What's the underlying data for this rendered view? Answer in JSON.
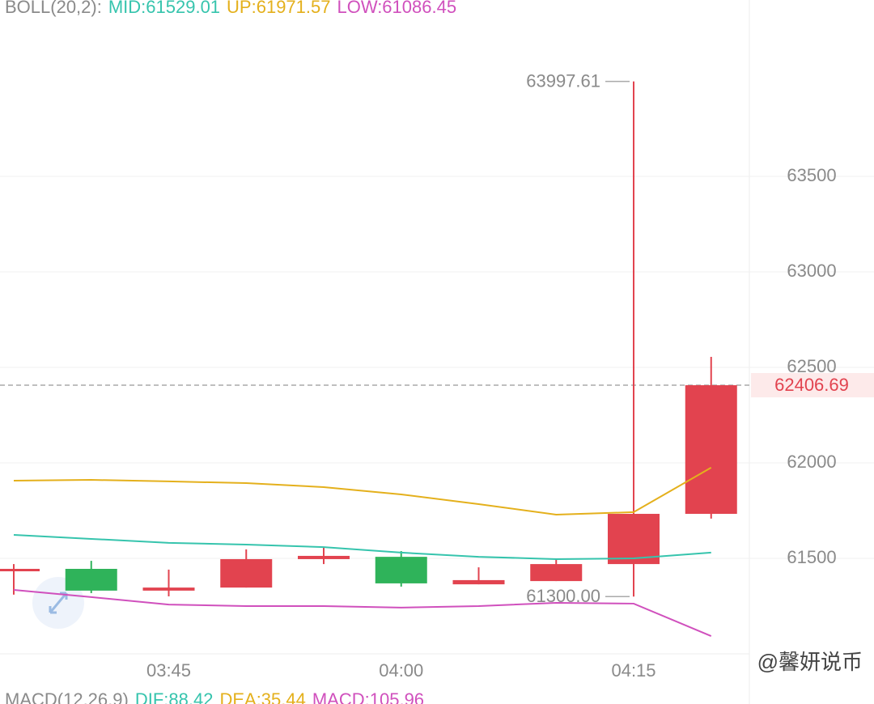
{
  "chart_data": {
    "type": "candlestick",
    "indicator": "BOLL(20,2):",
    "header_items": [
      "MID:61529.01",
      "UP:61971.57",
      "LOW:61086.45"
    ],
    "categories": [
      null,
      null,
      "03:45",
      null,
      null,
      "04:00",
      null,
      null,
      "04:15",
      null
    ],
    "open": [
      61440,
      61445,
      61331,
      61347,
      61496,
      61508,
      61364,
      61381,
      61470,
      61733
    ],
    "high": [
      61470,
      61487,
      61441,
      61547,
      61559,
      61538,
      61453,
      61496,
      63997.61,
      62555
    ],
    "low": [
      61310,
      61318,
      61301,
      61347,
      61470,
      61352,
      61364,
      61381,
      61300,
      61708
    ],
    "close": [
      61445,
      61331,
      61347,
      61496,
      61513,
      61369,
      61386,
      61470,
      61733,
      62406.69
    ],
    "up_color": "#e2434f",
    "down_color": "#2fb35a",
    "series": [
      {
        "name": "MID",
        "color": "#36c4ad",
        "values": [
          61623,
          61602,
          61581,
          61572,
          61559,
          61530,
          61508,
          61496,
          61500,
          61530
        ]
      },
      {
        "name": "UP",
        "color": "#e4b01c",
        "values": [
          61907,
          61911,
          61903,
          61894,
          61873,
          61835,
          61784,
          61729,
          61742,
          61975
        ]
      },
      {
        "name": "LOW",
        "color": "#d050bd",
        "values": [
          61335,
          61297,
          61258,
          61250,
          61250,
          61242,
          61250,
          61267,
          61263,
          61093
        ]
      }
    ],
    "ylim": [
      61000,
      64424
    ],
    "yticks": [
      61500,
      62000,
      62500,
      63000,
      63500
    ],
    "grid": true,
    "annotations": [
      {
        "value": 63997.61,
        "label": "63997.61"
      },
      {
        "value": 61300,
        "label": "61300.00"
      }
    ],
    "current_price": {
      "value": 62406.69,
      "label": "62406.69"
    }
  },
  "macd": {
    "label": "MACD(12,26,9)",
    "items": [
      "DIF:88.42",
      "DEA:35.44",
      "MACD:105.96"
    ]
  },
  "watermark": "@馨妍说币"
}
